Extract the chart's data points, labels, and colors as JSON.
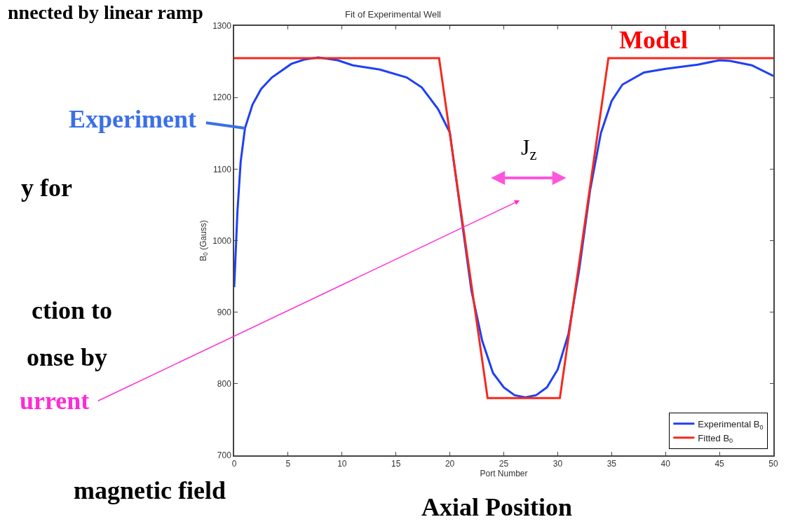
{
  "chart_data": {
    "type": "line",
    "title": "Fit of Experimental Well",
    "xlabel": "Port Number",
    "ylabel": "B$_{0}$ (Gauss)",
    "xlim": [
      0,
      50
    ],
    "xticks": [
      0,
      5,
      10,
      15,
      20,
      25,
      30,
      35,
      40,
      45,
      50
    ],
    "ylim": [
      700,
      1300
    ],
    "yticks": [
      700,
      800,
      900,
      1000,
      1100,
      1200,
      1300
    ],
    "legend": "bottom right",
    "marker": "none",
    "line_style": "solid",
    "series": [
      {
        "name": "Experimental B$_{0}$",
        "color": "#1f3ff5",
        "x": [
          0,
          0.3,
          0.6,
          1.0,
          1.7,
          2.5,
          3.5,
          5.3,
          6.5,
          7.8,
          9.6,
          11,
          13.5,
          16,
          17.4,
          18.9,
          20,
          21,
          22,
          23,
          24,
          25,
          26,
          27,
          28,
          29,
          30,
          31,
          32,
          33,
          34,
          35,
          36,
          38,
          40,
          43,
          45,
          46,
          48,
          50
        ],
        "values": [
          935,
          1040,
          1110,
          1157,
          1190,
          1212,
          1228,
          1247,
          1253,
          1256,
          1252,
          1245,
          1239,
          1228,
          1214,
          1184,
          1151,
          1040,
          930,
          860,
          815,
          795,
          784,
          781,
          784,
          795,
          820,
          870,
          960,
          1070,
          1150,
          1195,
          1218,
          1235,
          1240,
          1246,
          1252,
          1251,
          1245,
          1230
        ]
      },
      {
        "name": "Fitted B$_{0}$",
        "color": "#f42a1e",
        "x": [
          0,
          19,
          23.5,
          30.2,
          34.7,
          50
        ],
        "values": [
          1255,
          1255,
          780,
          780,
          1255,
          1255
        ]
      }
    ],
    "annotations": [
      "nnected by linear ramp",
      {
        "text": "Experiment",
        "x": 1.0,
        "y": 1157
      },
      "y for",
      "ction to",
      "onse by",
      "urrent",
      "magnetic field",
      "Axial Position",
      "Model",
      "J$_{z}$"
    ]
  }
}
